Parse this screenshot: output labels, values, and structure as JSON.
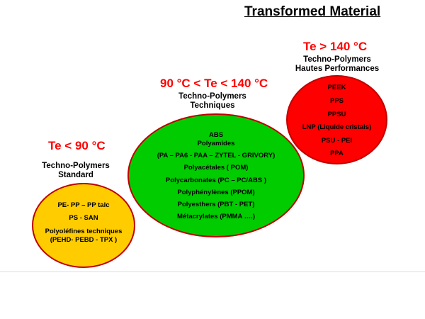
{
  "title": "Transformed Material",
  "groups": [
    {
      "temperature": "Te < 90 °C",
      "category": [
        "Techno-Polymers",
        "Standard"
      ],
      "color": "#ffcc00",
      "materials": [
        "PE- PP – PP talc",
        "PS - SAN",
        "Polyoléfines techniques",
        "(PEHD- PEBD - TPX )"
      ]
    },
    {
      "temperature": "90 °C < Te < 140 °C",
      "category": [
        "Techno-Polymers",
        "Techniques"
      ],
      "color": "#00cc00",
      "materials": [
        "ABS",
        "Polyamides",
        "(PA – PA6 - PAA – ZYTEL - GRIVORY)",
        "Polyacétales ( POM)",
        "Polycarbonates (PC – PC/ABS )",
        "Polyphénylènes (PPOM)",
        "Polyesthers (PBT - PET)",
        "Métacrylates (PMMA ….)"
      ]
    },
    {
      "temperature": "Te > 140 °C",
      "category": [
        "Techno-Polymers",
        "Hautes Performances"
      ],
      "color": "#ff0000",
      "materials": [
        "PEEK",
        "PPS",
        "PPSU",
        "LNP (Liquide cristals)",
        "PSU - PEI",
        "PPA"
      ]
    }
  ]
}
